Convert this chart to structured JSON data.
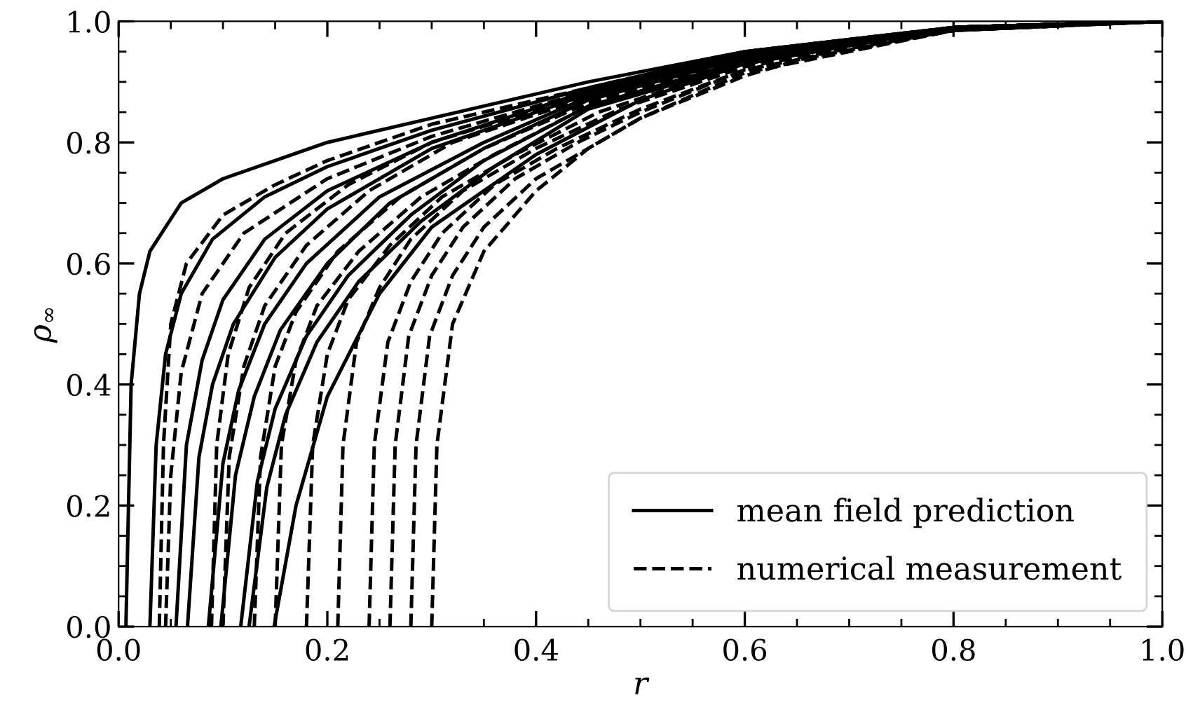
{
  "chart_data": {
    "type": "line",
    "xlabel": "r",
    "ylabel": "ρ$_{∞}$",
    "xlim": [
      0,
      1
    ],
    "ylim": [
      0,
      1
    ],
    "xticks": [
      {
        "value": 0,
        "label": "0.0"
      },
      {
        "value": 0.2,
        "label": "0.2"
      },
      {
        "value": 0.4,
        "label": "0.4"
      },
      {
        "value": 0.6,
        "label": "0.6"
      },
      {
        "value": 0.8,
        "label": "0.8"
      },
      {
        "value": 1,
        "label": "1.0"
      }
    ],
    "yticks": [
      {
        "value": 0,
        "label": "0.0"
      },
      {
        "value": 0.2,
        "label": "0.2"
      },
      {
        "value": 0.4,
        "label": "0.4"
      },
      {
        "value": 0.6,
        "label": "0.6"
      },
      {
        "value": 0.8,
        "label": "0.8"
      },
      {
        "value": 1,
        "label": "1.0"
      }
    ],
    "grid": false,
    "legend": "bottom right",
    "marker": "none",
    "series": [
      {
        "name": "mean field prediction",
        "color": "#000000",
        "line_style": "solid",
        "x": [
          0.007,
          0.012,
          0.02,
          0.03,
          0.06,
          0.1,
          0.2,
          0.3,
          0.45,
          0.6,
          0.8,
          1.0
        ],
        "values": [
          0,
          0.4,
          0.55,
          0.62,
          0.7,
          0.74,
          0.8,
          0.84,
          0.9,
          0.95,
          0.99,
          1.0
        ]
      },
      {
        "color": "#000000",
        "line_style": "solid",
        "x": [
          0.03,
          0.036,
          0.045,
          0.06,
          0.09,
          0.14,
          0.2,
          0.3,
          0.45,
          0.6,
          0.8,
          1.0
        ],
        "values": [
          0,
          0.3,
          0.45,
          0.55,
          0.64,
          0.71,
          0.76,
          0.82,
          0.89,
          0.95,
          0.99,
          1.0
        ]
      },
      {
        "color": "#000000",
        "line_style": "solid",
        "x": [
          0.055,
          0.065,
          0.08,
          0.1,
          0.14,
          0.2,
          0.3,
          0.45,
          0.6,
          0.8,
          1.0
        ],
        "values": [
          0,
          0.3,
          0.44,
          0.54,
          0.64,
          0.72,
          0.8,
          0.885,
          0.945,
          0.99,
          1.0
        ]
      },
      {
        "color": "#000000",
        "line_style": "solid",
        "x": [
          0.066,
          0.077,
          0.09,
          0.11,
          0.15,
          0.2,
          0.3,
          0.45,
          0.6,
          0.8,
          1.0
        ],
        "values": [
          0,
          0.28,
          0.4,
          0.5,
          0.61,
          0.69,
          0.79,
          0.88,
          0.94,
          0.99,
          1.0
        ]
      },
      {
        "color": "#000000",
        "line_style": "solid",
        "x": [
          0.086,
          0.1,
          0.115,
          0.14,
          0.18,
          0.25,
          0.35,
          0.45,
          0.6,
          0.8,
          1.0
        ],
        "values": [
          0,
          0.27,
          0.39,
          0.5,
          0.6,
          0.71,
          0.8,
          0.875,
          0.94,
          0.99,
          1.0
        ]
      },
      {
        "color": "#000000",
        "line_style": "solid",
        "x": [
          0.098,
          0.112,
          0.13,
          0.155,
          0.2,
          0.26,
          0.35,
          0.45,
          0.6,
          0.8,
          1.0
        ],
        "values": [
          0,
          0.25,
          0.38,
          0.49,
          0.6,
          0.7,
          0.79,
          0.87,
          0.94,
          0.99,
          1.0
        ]
      },
      {
        "color": "#000000",
        "line_style": "solid",
        "x": [
          0.117,
          0.133,
          0.15,
          0.18,
          0.22,
          0.28,
          0.35,
          0.45,
          0.6,
          0.8,
          1.0
        ],
        "values": [
          0,
          0.24,
          0.36,
          0.48,
          0.58,
          0.68,
          0.77,
          0.86,
          0.935,
          0.99,
          1.0
        ]
      },
      {
        "color": "#000000",
        "line_style": "solid",
        "x": [
          0.125,
          0.142,
          0.16,
          0.19,
          0.23,
          0.29,
          0.36,
          0.45,
          0.6,
          0.8,
          1.0
        ],
        "values": [
          0,
          0.23,
          0.35,
          0.47,
          0.57,
          0.67,
          0.76,
          0.855,
          0.93,
          0.99,
          1.0
        ]
      },
      {
        "color": "#000000",
        "line_style": "solid",
        "x": [
          0.149,
          0.17,
          0.2,
          0.25,
          0.3,
          0.4,
          0.5,
          0.6,
          0.8,
          1.0
        ],
        "values": [
          0,
          0.2,
          0.38,
          0.55,
          0.66,
          0.78,
          0.87,
          0.93,
          0.99,
          1.0
        ]
      },
      {
        "name": "numerical measurement",
        "color": "#000000",
        "line_style": "dashed",
        "x": [
          0.039,
          0.043,
          0.05,
          0.065,
          0.1,
          0.15,
          0.2,
          0.3,
          0.45,
          0.6,
          0.8,
          1.0
        ],
        "values": [
          0,
          0.3,
          0.5,
          0.6,
          0.68,
          0.73,
          0.77,
          0.83,
          0.89,
          0.95,
          0.99,
          1.0
        ]
      },
      {
        "color": "#000000",
        "line_style": "dashed",
        "x": [
          0.045,
          0.05,
          0.06,
          0.08,
          0.12,
          0.2,
          0.3,
          0.45,
          0.6,
          0.8,
          1.0
        ],
        "values": [
          0,
          0.25,
          0.42,
          0.55,
          0.65,
          0.74,
          0.81,
          0.885,
          0.945,
          0.99,
          1.0
        ]
      },
      {
        "color": "#000000",
        "line_style": "dashed",
        "x": [
          0.089,
          0.094,
          0.105,
          0.125,
          0.16,
          0.22,
          0.3,
          0.45,
          0.6,
          0.8,
          1.0
        ],
        "values": [
          0,
          0.3,
          0.45,
          0.56,
          0.65,
          0.73,
          0.8,
          0.88,
          0.94,
          0.99,
          1.0
        ]
      },
      {
        "color": "#000000",
        "line_style": "dashed",
        "x": [
          0.1,
          0.106,
          0.12,
          0.14,
          0.18,
          0.24,
          0.32,
          0.45,
          0.6,
          0.8,
          1.0
        ],
        "values": [
          0,
          0.28,
          0.43,
          0.53,
          0.63,
          0.72,
          0.8,
          0.875,
          0.94,
          0.99,
          1.0
        ]
      },
      {
        "color": "#000000",
        "line_style": "dashed",
        "x": [
          0.13,
          0.136,
          0.15,
          0.17,
          0.21,
          0.27,
          0.35,
          0.45,
          0.6,
          0.8,
          1.0
        ],
        "values": [
          0,
          0.28,
          0.43,
          0.52,
          0.62,
          0.71,
          0.79,
          0.865,
          0.935,
          0.99,
          1.0
        ]
      },
      {
        "color": "#000000",
        "line_style": "dashed",
        "x": [
          0.15,
          0.156,
          0.17,
          0.19,
          0.23,
          0.29,
          0.36,
          0.45,
          0.6,
          0.8,
          1.0
        ],
        "values": [
          0,
          0.3,
          0.44,
          0.53,
          0.62,
          0.71,
          0.78,
          0.86,
          0.93,
          0.99,
          1.0
        ]
      },
      {
        "color": "#000000",
        "line_style": "dashed",
        "x": [
          0.18,
          0.186,
          0.2,
          0.22,
          0.26,
          0.31,
          0.38,
          0.46,
          0.6,
          0.8,
          1.0
        ],
        "values": [
          0,
          0.3,
          0.45,
          0.54,
          0.63,
          0.71,
          0.78,
          0.85,
          0.93,
          0.99,
          1.0
        ]
      },
      {
        "color": "#000000",
        "line_style": "dashed",
        "x": [
          0.21,
          0.215,
          0.228,
          0.25,
          0.28,
          0.33,
          0.4,
          0.48,
          0.6,
          0.8,
          1.0
        ],
        "values": [
          0,
          0.3,
          0.47,
          0.56,
          0.64,
          0.72,
          0.79,
          0.855,
          0.925,
          0.985,
          1.0
        ]
      },
      {
        "color": "#000000",
        "line_style": "dashed",
        "x": [
          0.24,
          0.245,
          0.258,
          0.28,
          0.31,
          0.36,
          0.42,
          0.5,
          0.6,
          0.8,
          1.0
        ],
        "values": [
          0,
          0.3,
          0.47,
          0.57,
          0.65,
          0.73,
          0.79,
          0.855,
          0.92,
          0.985,
          1.0
        ]
      },
      {
        "color": "#000000",
        "line_style": "dashed",
        "x": [
          0.26,
          0.265,
          0.278,
          0.3,
          0.33,
          0.38,
          0.44,
          0.5,
          0.6,
          0.8,
          1.0
        ],
        "values": [
          0,
          0.3,
          0.48,
          0.58,
          0.66,
          0.74,
          0.8,
          0.85,
          0.92,
          0.985,
          1.0
        ]
      },
      {
        "color": "#000000",
        "line_style": "dashed",
        "x": [
          0.28,
          0.285,
          0.298,
          0.32,
          0.35,
          0.4,
          0.45,
          0.5,
          0.6,
          0.8,
          1.0
        ],
        "values": [
          0,
          0.3,
          0.48,
          0.58,
          0.66,
          0.74,
          0.79,
          0.84,
          0.915,
          0.985,
          1.0
        ]
      },
      {
        "color": "#000000",
        "line_style": "dashed",
        "x": [
          0.3,
          0.305,
          0.32,
          0.35,
          0.4,
          0.45,
          0.5,
          0.6,
          0.7,
          0.8,
          1.0
        ],
        "values": [
          0,
          0.3,
          0.5,
          0.62,
          0.72,
          0.79,
          0.84,
          0.91,
          0.96,
          0.985,
          1.0
        ]
      }
    ]
  }
}
